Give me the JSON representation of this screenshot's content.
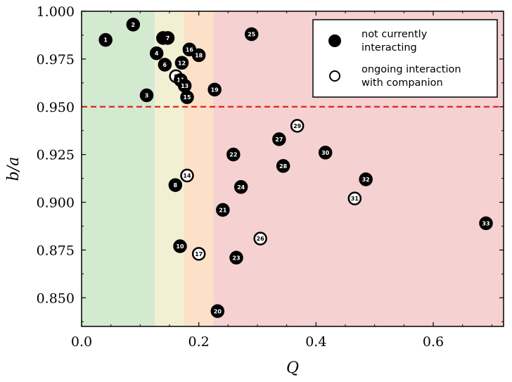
{
  "chart_data": {
    "type": "scatter",
    "xlabel": "Q",
    "ylabel": "b/a",
    "xlim": [
      0.0,
      0.72
    ],
    "ylim": [
      0.835,
      1.0
    ],
    "x_ticks": [
      0.0,
      0.2,
      0.4,
      0.6
    ],
    "x_tick_labels": [
      "0.0",
      "0.2",
      "0.4",
      "0.6"
    ],
    "y_ticks": [
      0.85,
      0.875,
      0.9,
      0.925,
      0.95,
      0.975,
      1.0
    ],
    "y_tick_labels": [
      "0.850",
      "0.875",
      "0.900",
      "0.925",
      "0.950",
      "0.975",
      "1.000"
    ],
    "threshold_line": {
      "y": 0.95,
      "color": "#e3211c",
      "style": "dashed"
    },
    "background_bands": [
      {
        "x0": 0.0,
        "x1": 0.125,
        "color": "#d3ead1"
      },
      {
        "x0": 0.125,
        "x1": 0.175,
        "color": "#f1f0d2"
      },
      {
        "x0": 0.175,
        "x1": 0.225,
        "color": "#fde0c8"
      },
      {
        "x0": 0.225,
        "x1": 0.72,
        "color": "#f5d1d1"
      }
    ],
    "legend": {
      "position": "top-right",
      "entries": [
        {
          "marker": "filled",
          "label_lines": [
            "not currently",
            "interacting"
          ]
        },
        {
          "marker": "open",
          "label_lines": [
            "ongoing interaction",
            "with companion"
          ]
        }
      ]
    },
    "points": [
      {
        "id": "1",
        "x": 0.041,
        "y": 0.985,
        "filled": true
      },
      {
        "id": "2",
        "x": 0.088,
        "y": 0.993,
        "filled": true
      },
      {
        "id": "3",
        "x": 0.111,
        "y": 0.956,
        "filled": true
      },
      {
        "id": "4",
        "x": 0.128,
        "y": 0.978,
        "filled": true
      },
      {
        "id": "5",
        "x": 0.139,
        "y": 0.986,
        "filled": true
      },
      {
        "id": "7",
        "x": 0.147,
        "y": 0.986,
        "filled": true
      },
      {
        "id": "6",
        "x": 0.142,
        "y": 0.972,
        "filled": true
      },
      {
        "id": "9",
        "x": 0.161,
        "y": 0.966,
        "filled": false
      },
      {
        "id": "11",
        "x": 0.169,
        "y": 0.964,
        "filled": true
      },
      {
        "id": "12",
        "x": 0.171,
        "y": 0.973,
        "filled": true
      },
      {
        "id": "13",
        "x": 0.176,
        "y": 0.961,
        "filled": true
      },
      {
        "id": "15",
        "x": 0.18,
        "y": 0.955,
        "filled": true
      },
      {
        "id": "16",
        "x": 0.184,
        "y": 0.98,
        "filled": true
      },
      {
        "id": "18",
        "x": 0.2,
        "y": 0.977,
        "filled": true
      },
      {
        "id": "19",
        "x": 0.227,
        "y": 0.959,
        "filled": true
      },
      {
        "id": "25",
        "x": 0.29,
        "y": 0.988,
        "filled": true
      },
      {
        "id": "8",
        "x": 0.16,
        "y": 0.909,
        "filled": true
      },
      {
        "id": "14",
        "x": 0.18,
        "y": 0.914,
        "filled": false
      },
      {
        "id": "10",
        "x": 0.168,
        "y": 0.877,
        "filled": true
      },
      {
        "id": "17",
        "x": 0.2,
        "y": 0.873,
        "filled": false
      },
      {
        "id": "20",
        "x": 0.232,
        "y": 0.843,
        "filled": true
      },
      {
        "id": "21",
        "x": 0.241,
        "y": 0.896,
        "filled": true
      },
      {
        "id": "22",
        "x": 0.259,
        "y": 0.925,
        "filled": true
      },
      {
        "id": "23",
        "x": 0.264,
        "y": 0.871,
        "filled": true
      },
      {
        "id": "24",
        "x": 0.272,
        "y": 0.908,
        "filled": true
      },
      {
        "id": "26",
        "x": 0.305,
        "y": 0.881,
        "filled": false
      },
      {
        "id": "27",
        "x": 0.337,
        "y": 0.933,
        "filled": true
      },
      {
        "id": "28",
        "x": 0.344,
        "y": 0.919,
        "filled": true
      },
      {
        "id": "29",
        "x": 0.368,
        "y": 0.94,
        "filled": false
      },
      {
        "id": "30",
        "x": 0.416,
        "y": 0.926,
        "filled": true
      },
      {
        "id": "31",
        "x": 0.466,
        "y": 0.902,
        "filled": false
      },
      {
        "id": "32",
        "x": 0.485,
        "y": 0.912,
        "filled": true
      },
      {
        "id": "33",
        "x": 0.69,
        "y": 0.889,
        "filled": true
      }
    ]
  }
}
